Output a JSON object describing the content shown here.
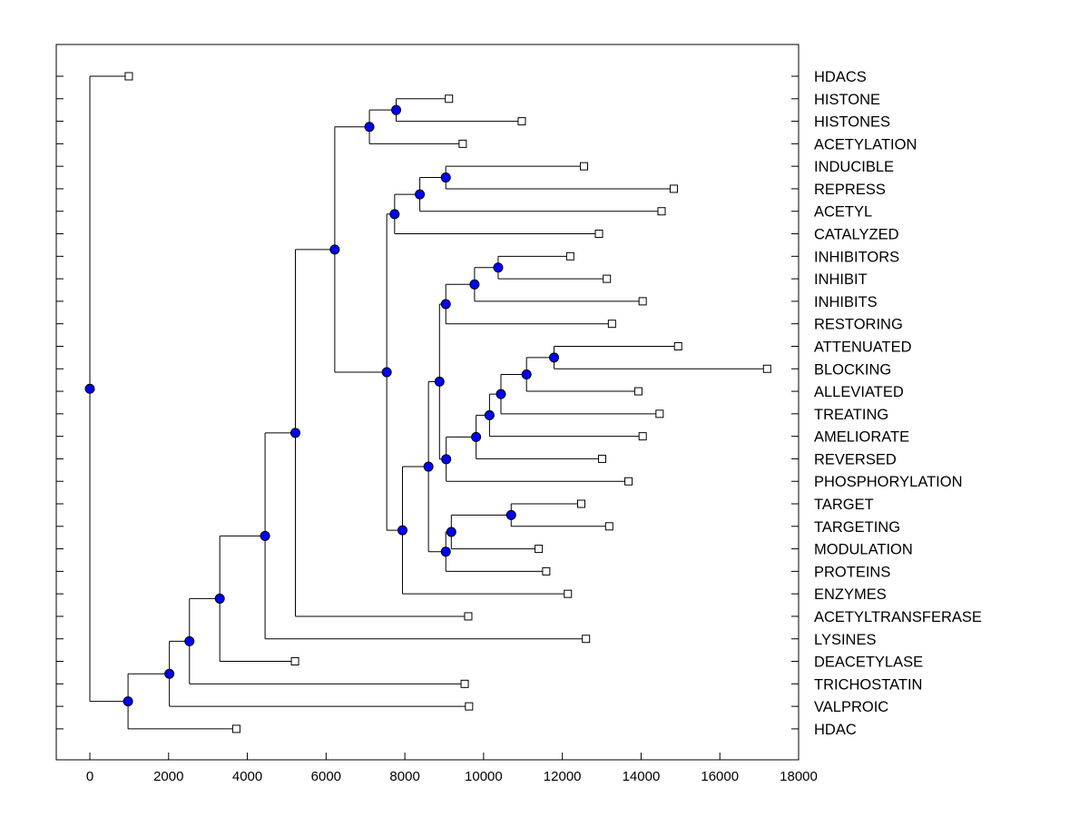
{
  "chart_data": {
    "type": "dendrogram",
    "title": "",
    "xlabel": "",
    "ylabel": "",
    "xlim": [
      -900,
      18000
    ],
    "xticks": [
      0,
      2000,
      4000,
      6000,
      8000,
      10000,
      12000,
      14000,
      16000,
      18000
    ],
    "colors": {
      "node_fill": "#0000ff",
      "node_stroke": "#000000",
      "leaf_fill": "#ffffff",
      "line": "#000000"
    },
    "leaves": [
      {
        "name": "HDACS",
        "x": 990
      },
      {
        "name": "HISTONE",
        "x": 9120
      },
      {
        "name": "HISTONES",
        "x": 10970
      },
      {
        "name": "ACETYLATION",
        "x": 9470
      },
      {
        "name": "INDUCIBLE",
        "x": 12550
      },
      {
        "name": "REPRESS",
        "x": 14830
      },
      {
        "name": "ACETYL",
        "x": 14520
      },
      {
        "name": "CATALYZED",
        "x": 12930
      },
      {
        "name": "INHIBITORS",
        "x": 12200
      },
      {
        "name": "INHIBIT",
        "x": 13130
      },
      {
        "name": "INHIBITS",
        "x": 14040
      },
      {
        "name": "RESTORING",
        "x": 13260
      },
      {
        "name": "ATTENUATED",
        "x": 14940
      },
      {
        "name": "BLOCKING",
        "x": 17200
      },
      {
        "name": "ALLEVIATED",
        "x": 13930
      },
      {
        "name": "TREATING",
        "x": 14470
      },
      {
        "name": "AMELIORATE",
        "x": 14040
      },
      {
        "name": "REVERSED",
        "x": 13010
      },
      {
        "name": "PHOSPHORYLATION",
        "x": 13680
      },
      {
        "name": "TARGET",
        "x": 12480
      },
      {
        "name": "TARGETING",
        "x": 13190
      },
      {
        "name": "MODULATION",
        "x": 11400
      },
      {
        "name": "PROTEINS",
        "x": 11590
      },
      {
        "name": "ENZYMES",
        "x": 12140
      },
      {
        "name": "ACETYLTRANSFERASE",
        "x": 9610
      },
      {
        "name": "LYSINES",
        "x": 12600
      },
      {
        "name": "DEACETYLASE",
        "x": 5210
      },
      {
        "name": "TRICHOSTATIN",
        "x": 9520
      },
      {
        "name": "VALPROIC",
        "x": 9630
      },
      {
        "name": "HDAC",
        "x": 3720
      }
    ],
    "nodes": [
      {
        "id": "n1",
        "x": 7780,
        "children": [
          "L1",
          "L2"
        ]
      },
      {
        "id": "n2",
        "x": 7100,
        "children": [
          "n1",
          "L3"
        ]
      },
      {
        "id": "n3",
        "x": 9040,
        "children": [
          "L4",
          "L5"
        ]
      },
      {
        "id": "n4",
        "x": 8380,
        "children": [
          "n3",
          "L6"
        ]
      },
      {
        "id": "n5",
        "x": 7740,
        "children": [
          "n4",
          "L7"
        ]
      },
      {
        "id": "n6",
        "x": 10370,
        "children": [
          "L8",
          "L9"
        ]
      },
      {
        "id": "n7",
        "x": 9770,
        "children": [
          "n6",
          "L10"
        ]
      },
      {
        "id": "n8",
        "x": 9040,
        "children": [
          "n7",
          "L11"
        ]
      },
      {
        "id": "n9",
        "x": 11790,
        "children": [
          "L12",
          "L13"
        ]
      },
      {
        "id": "n10",
        "x": 11090,
        "children": [
          "n9",
          "L14"
        ]
      },
      {
        "id": "n11",
        "x": 10440,
        "children": [
          "n10",
          "L15"
        ]
      },
      {
        "id": "n12",
        "x": 10150,
        "children": [
          "n11",
          "L16"
        ]
      },
      {
        "id": "n13",
        "x": 9810,
        "children": [
          "n12",
          "L17"
        ]
      },
      {
        "id": "n14",
        "x": 9050,
        "children": [
          "n13",
          "L18"
        ]
      },
      {
        "id": "n15",
        "x": 8880,
        "children": [
          "n8",
          "n14"
        ]
      },
      {
        "id": "n16",
        "x": 10700,
        "children": [
          "L19",
          "L20"
        ]
      },
      {
        "id": "n17",
        "x": 9180,
        "children": [
          "n16",
          "L21"
        ]
      },
      {
        "id": "n18",
        "x": 9040,
        "children": [
          "n17",
          "L22"
        ]
      },
      {
        "id": "n19",
        "x": 8600,
        "children": [
          "n15",
          "n18"
        ]
      },
      {
        "id": "n20",
        "x": 7940,
        "children": [
          "n19",
          "L23"
        ]
      },
      {
        "id": "n21",
        "x": 7540,
        "children": [
          "n5",
          "n20"
        ]
      },
      {
        "id": "n22",
        "x": 6220,
        "children": [
          "n2",
          "n21"
        ]
      },
      {
        "id": "n23",
        "x": 5220,
        "children": [
          "n22",
          "L24"
        ]
      },
      {
        "id": "n24",
        "x": 4450,
        "children": [
          "n23",
          "L25"
        ]
      },
      {
        "id": "n25",
        "x": 3300,
        "children": [
          "n24",
          "L26"
        ]
      },
      {
        "id": "n26",
        "x": 2530,
        "children": [
          "n25",
          "L27"
        ]
      },
      {
        "id": "n27",
        "x": 2020,
        "children": [
          "n26",
          "L28"
        ]
      },
      {
        "id": "n28",
        "x": 970,
        "children": [
          "n27",
          "L29"
        ]
      },
      {
        "id": "n29",
        "x": 0,
        "children": [
          "L0",
          "n28"
        ]
      }
    ]
  }
}
